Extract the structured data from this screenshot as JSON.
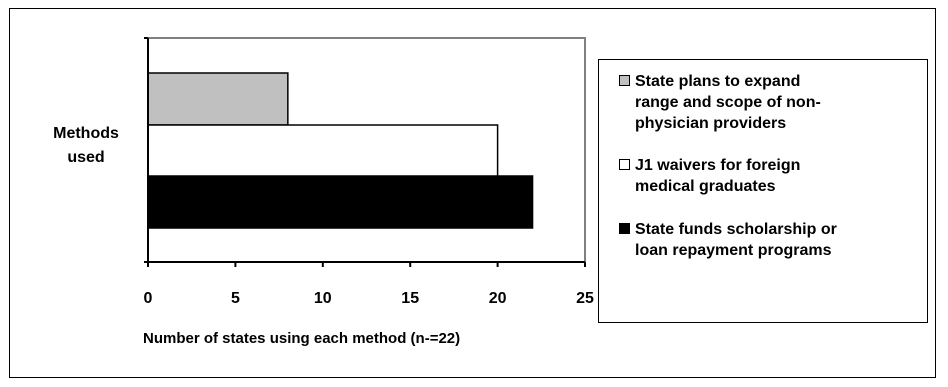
{
  "chart_data": {
    "type": "bar",
    "orientation": "horizontal",
    "category_label": "Methods used",
    "xlabel": "Number of states using each method (n-=22)",
    "xlim": [
      0,
      25
    ],
    "xticks": [
      "0",
      "5",
      "10",
      "15",
      "20",
      "25"
    ],
    "grid": false,
    "legend_position": "right",
    "series": [
      {
        "name": "State plans to expand range and scope of non-physician providers",
        "value": 8,
        "color": "#c0c0c0"
      },
      {
        "name": "J1 waivers for foreign medical graduates",
        "value": 20,
        "color": "#ffffff"
      },
      {
        "name": "State funds scholarship or loan repayment programs",
        "value": 22,
        "color": "#000000"
      }
    ],
    "legend_lines": [
      [
        "State plans to expand",
        "range and scope of non-",
        "physician providers"
      ],
      [
        "J1 waivers for foreign",
        "medical graduates"
      ],
      [
        "State funds scholarship or",
        "loan repayment programs"
      ]
    ],
    "category_lines": [
      "Methods",
      "used"
    ]
  }
}
